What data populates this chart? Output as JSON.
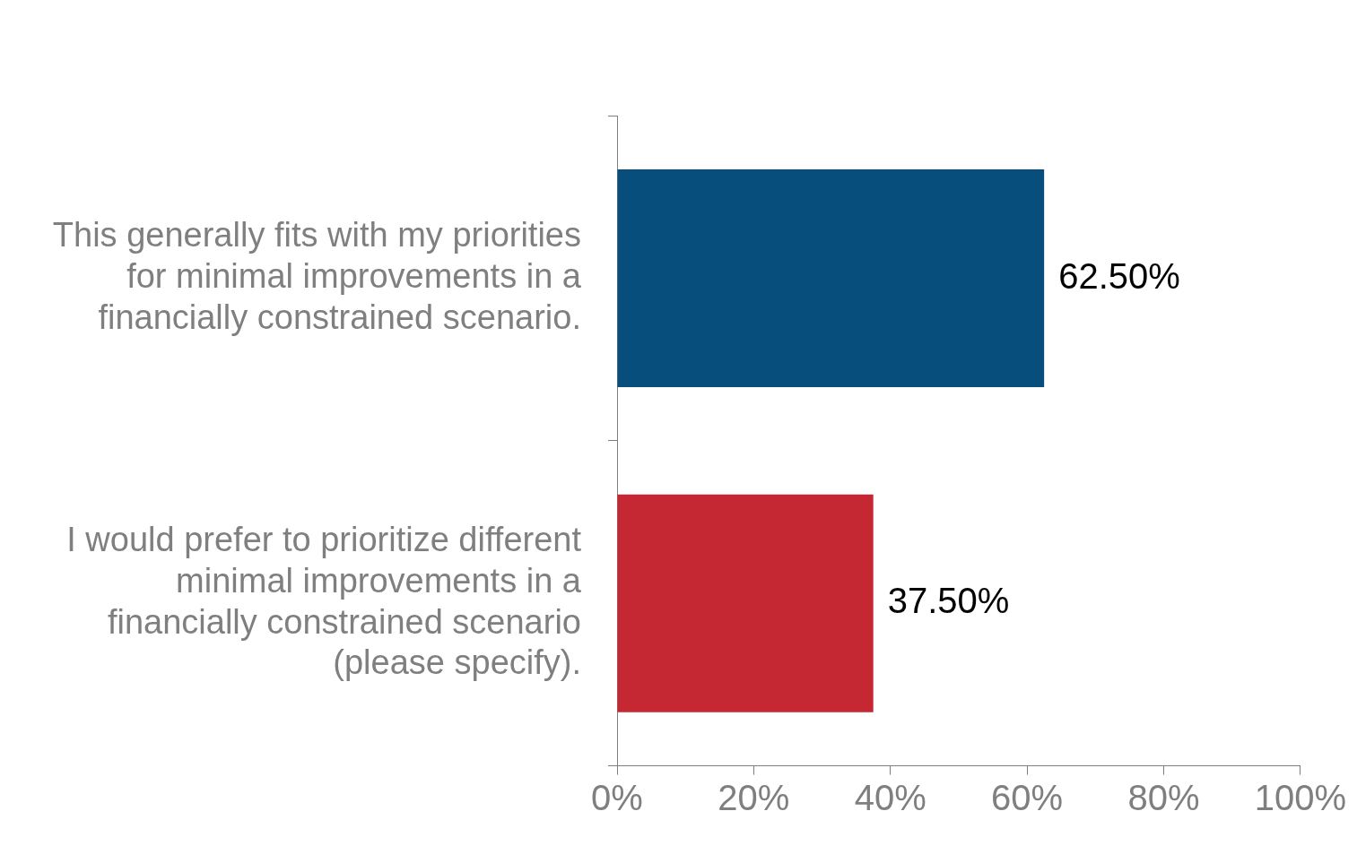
{
  "chart_data": {
    "type": "bar",
    "orientation": "horizontal",
    "categories": [
      "This generally fits with my priorities for minimal improvements in a financially constrained scenario.",
      "I would prefer to prioritize different minimal improvements in a financially constrained scenario (please specify)."
    ],
    "values": [
      62.5,
      37.5
    ],
    "colors": [
      "#084e7c",
      "#c62833"
    ],
    "value_labels": [
      "62.50%",
      "37.50%"
    ],
    "xlim": [
      0,
      100
    ],
    "xticks": [
      {
        "value": 0,
        "label": "0%"
      },
      {
        "value": 20,
        "label": "20%"
      },
      {
        "value": 40,
        "label": "40%"
      },
      {
        "value": 60,
        "label": "60%"
      },
      {
        "value": 80,
        "label": "80%"
      },
      {
        "value": 100,
        "label": "100%"
      }
    ]
  }
}
